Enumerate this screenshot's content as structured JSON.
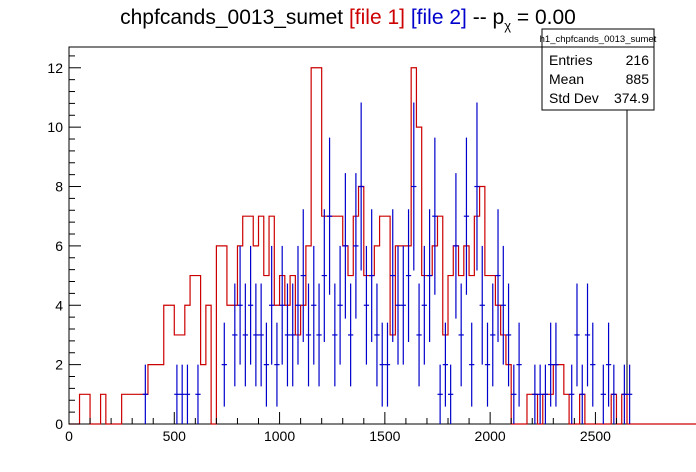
{
  "title": {
    "main": "chpfcands_0013_sumet",
    "file1": "[file 1]",
    "file2": "[file 2]",
    "sep": "-- p",
    "sub": "χ",
    "value": "= 0.00"
  },
  "stats": {
    "name": "h1_chpfcands_0013_sumet",
    "rows": [
      {
        "label": "Entries",
        "value": "216"
      },
      {
        "label": "Mean",
        "value": "885"
      },
      {
        "label": "Std Dev",
        "value": "374.9"
      }
    ]
  },
  "colors": {
    "file1": "#cc0000",
    "file2": "#0000cc",
    "axis": "#000000"
  },
  "chart_data": {
    "type": "histogram",
    "xlim": [
      0,
      2650
    ],
    "ylim": [
      0,
      12.7
    ],
    "xticks": [
      0,
      500,
      1000,
      1500,
      2000,
      2500
    ],
    "yticks": [
      0,
      2,
      4,
      6,
      8,
      10,
      12
    ],
    "bin_width": 25,
    "series": [
      {
        "name": "file 1",
        "style": "step",
        "values": [
          0,
          0,
          1,
          1,
          0,
          0,
          1,
          0,
          0,
          0,
          1,
          1,
          1,
          1,
          1,
          2,
          2,
          2,
          4,
          4,
          3,
          3,
          4,
          5,
          5,
          2,
          4,
          0,
          6,
          6,
          4,
          4,
          6,
          7,
          7,
          6,
          7,
          5,
          7,
          4,
          5,
          4,
          5,
          3,
          4,
          6,
          12,
          12,
          7,
          7,
          7,
          7,
          6,
          5,
          7,
          8,
          5,
          5,
          6,
          7,
          7,
          3,
          6,
          6,
          6,
          12,
          10,
          5,
          5,
          6,
          7,
          3,
          5,
          6,
          5,
          6,
          5,
          7,
          8,
          5,
          5,
          4,
          3,
          2,
          0,
          0,
          0,
          1,
          1,
          0,
          1,
          1,
          2,
          2,
          1,
          0,
          0,
          1,
          0,
          0,
          0,
          0,
          0,
          1,
          0,
          1,
          0,
          0,
          0,
          0,
          0,
          0,
          0,
          0,
          0,
          0,
          0,
          0,
          0,
          0
        ]
      },
      {
        "name": "file 2",
        "style": "errorbars",
        "values": [
          0,
          0,
          0,
          0,
          0,
          0,
          0,
          0,
          0,
          0,
          0,
          0,
          0,
          0,
          1,
          0,
          0,
          0,
          0,
          0,
          1,
          1,
          1,
          0,
          1,
          0,
          0,
          0,
          0,
          2,
          0,
          3,
          4,
          3,
          4,
          3,
          3,
          2,
          4,
          2,
          4,
          3,
          3,
          4,
          5,
          3,
          4,
          3,
          5,
          7,
          3,
          4,
          6,
          3,
          6,
          8,
          4,
          5,
          3,
          2,
          2,
          5,
          4,
          4,
          5,
          8,
          3,
          4,
          5,
          7,
          1,
          2,
          1,
          6,
          3,
          7,
          2,
          8,
          4,
          2,
          3,
          5,
          4,
          3,
          1,
          2,
          0,
          0,
          1,
          1,
          1,
          2,
          2,
          0,
          0,
          1,
          3,
          1,
          3,
          2,
          0,
          1,
          2,
          1,
          0,
          1,
          1,
          0,
          0,
          0,
          0,
          0,
          0,
          0,
          0,
          0,
          0,
          0,
          0,
          0
        ]
      }
    ]
  }
}
